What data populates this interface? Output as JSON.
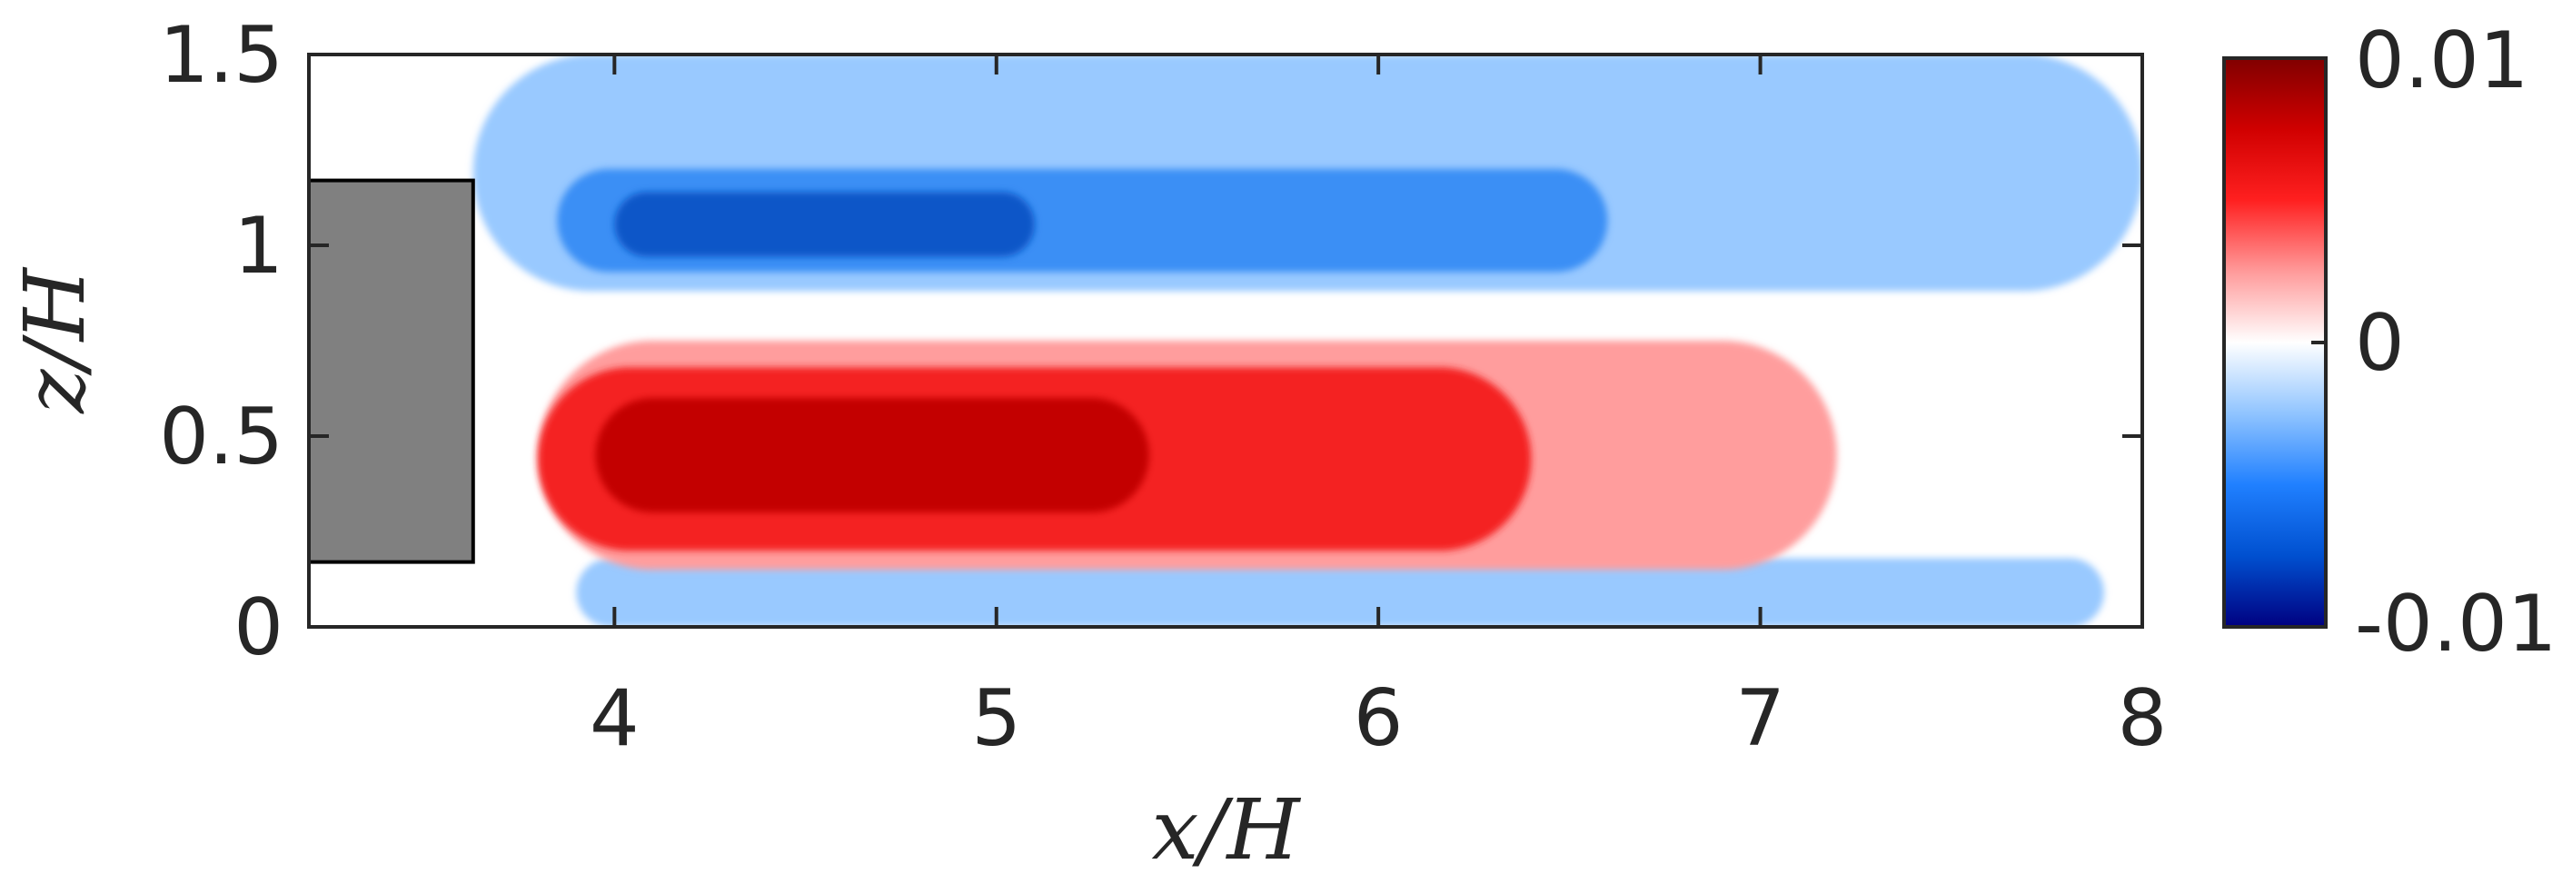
{
  "chart_data": {
    "type": "heatmap",
    "title": "",
    "xlabel": "x/H",
    "ylabel": "z/H",
    "xlim": [
      3.2,
      8
    ],
    "ylim": [
      0,
      1.5
    ],
    "x_ticks": [
      "4",
      "5",
      "6",
      "7",
      "8"
    ],
    "x_tick_values": [
      4,
      5,
      6,
      7,
      8
    ],
    "y_ticks": [
      "0",
      "0.5",
      "1",
      "1.5"
    ],
    "y_tick_values": [
      0,
      0.5,
      1,
      1.5
    ],
    "colorbar": {
      "min": -0.01,
      "max": 0.01,
      "ticks": [
        "0.01",
        "0",
        "-0.01"
      ],
      "tick_values": [
        0.01,
        0,
        -0.01
      ],
      "colormap": [
        "#000080",
        "#0050d0",
        "#2080ff",
        "#90c4ff",
        "#ffffff",
        "#ff9a9a",
        "#ff2020",
        "#d00000",
        "#800000"
      ]
    },
    "obstacle": {
      "x_range": [
        3.2,
        3.63
      ],
      "z_range": [
        0.17,
        1.17
      ],
      "color": "#808080"
    },
    "regions": [
      {
        "level": "weak-negative",
        "value": -0.002,
        "color": "#99c9ff",
        "x_range": [
          3.63,
          8.0
        ],
        "z_range": [
          0.88,
          1.5
        ]
      },
      {
        "level": "weak-negative",
        "value": -0.002,
        "color": "#99c9ff",
        "x_range": [
          3.9,
          7.9
        ],
        "z_range": [
          0.0,
          0.18
        ]
      },
      {
        "level": "negative",
        "value": -0.005,
        "color": "#3b8ff5",
        "x_range": [
          3.85,
          6.6
        ],
        "z_range": [
          0.93,
          1.2
        ]
      },
      {
        "level": "strong-negative",
        "value": -0.008,
        "color": "#0a56c8",
        "x_range": [
          4.0,
          5.1
        ],
        "z_range": [
          0.97,
          1.14
        ]
      },
      {
        "level": "weak-positive",
        "value": 0.002,
        "color": "#ff9d9d",
        "x_range": [
          3.8,
          7.2
        ],
        "z_range": [
          0.15,
          0.75
        ]
      },
      {
        "level": "positive",
        "value": 0.005,
        "color": "#f42020",
        "x_range": [
          3.8,
          6.4
        ],
        "z_range": [
          0.2,
          0.68
        ]
      },
      {
        "level": "strong-positive",
        "value": 0.008,
        "color": "#c30000",
        "x_range": [
          3.95,
          5.4
        ],
        "z_range": [
          0.3,
          0.6
        ]
      }
    ]
  }
}
